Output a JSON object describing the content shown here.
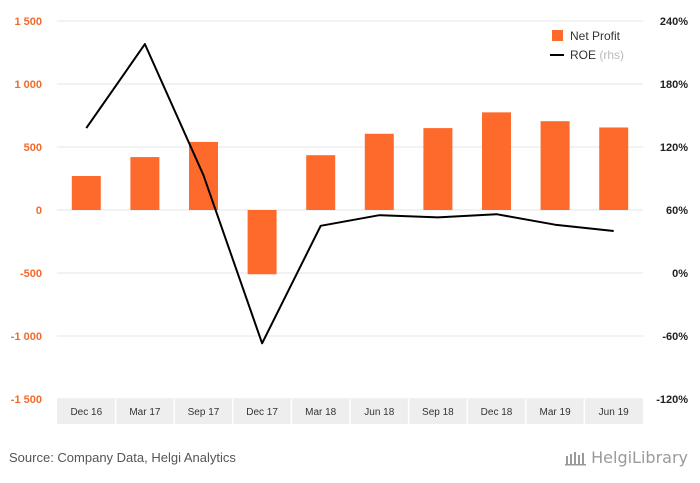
{
  "chart_data": {
    "type": "bar+line",
    "categories": [
      "Dec 16",
      "Mar 17",
      "Sep 17",
      "Dec 17",
      "Mar 18",
      "Jun 18",
      "Sep 18",
      "Dec 18",
      "Mar 19",
      "Jun 19"
    ],
    "series": [
      {
        "name": "Net Profit",
        "type": "bar",
        "axis": "left",
        "color": "#fe6a2c",
        "values": [
          270,
          420,
          540,
          -510,
          435,
          605,
          650,
          775,
          705,
          655
        ]
      },
      {
        "name": "ROE",
        "type": "line",
        "axis": "right",
        "color": "#000000",
        "values": [
          138,
          218,
          93,
          -67,
          45,
          55,
          53,
          56,
          46,
          40
        ]
      }
    ],
    "legend": {
      "items": [
        {
          "label": "Net Profit",
          "suffix": ""
        },
        {
          "label": "ROE",
          "suffix": "(rhs)"
        }
      ],
      "position": "top-right"
    },
    "y_left": {
      "ylim": [
        -1500,
        1500
      ],
      "ticks": [
        1500,
        1000,
        500,
        0,
        -500,
        -1000,
        -1500
      ],
      "tick_labels": [
        "1 500",
        "1 000",
        "500",
        "0",
        "-500",
        "-1 000",
        "-1 500"
      ]
    },
    "y_right": {
      "ylim": [
        -120,
        240
      ],
      "ticks": [
        240,
        180,
        120,
        60,
        0,
        -60,
        -120
      ],
      "tick_labels": [
        "240%",
        "180%",
        "120%",
        "60%",
        "0%",
        "-60%",
        "-120%"
      ]
    },
    "grid": true
  },
  "footer": {
    "source": "Source: Company Data, Helgi Analytics",
    "brand": "HelgiLibrary"
  }
}
